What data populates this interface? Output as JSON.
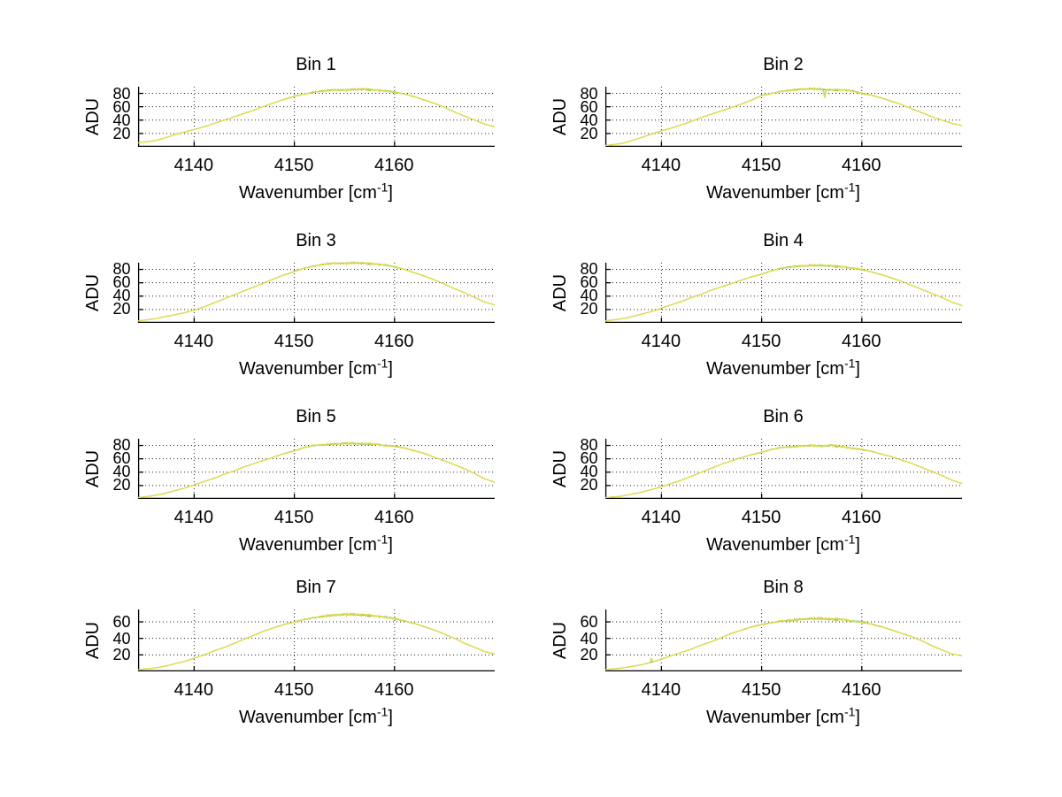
{
  "figure": {
    "background": "#ffffff",
    "text_color": "#000000"
  },
  "labels": {
    "ylabel": "ADU",
    "xlabel_pre": "Wavenumber [cm",
    "xlabel_sup": "-1",
    "xlabel_post": "]"
  },
  "colors": {
    "axis": "#000000",
    "grid": "#222222",
    "trace_black": "#222222",
    "trace_cyan": "#6ec6bb",
    "trace_green": "#8ccf5a",
    "trace_yellow": "#e5d942"
  },
  "chart_data": [
    {
      "type": "line",
      "title": "Bin 1",
      "xlabel": "Wavenumber [cm^-1]",
      "ylabel": "ADU",
      "xlim": [
        4134.4,
        4170
      ],
      "ylim": [
        0,
        90
      ],
      "x_ticks": [
        4140,
        4150,
        4160
      ],
      "y_ticks": [
        20,
        40,
        60,
        80
      ],
      "grid": true,
      "points": [
        [
          4134.4,
          6
        ],
        [
          4136,
          9
        ],
        [
          4137,
          13
        ],
        [
          4138,
          18
        ],
        [
          4139,
          22
        ],
        [
          4140,
          26
        ],
        [
          4141,
          30
        ],
        [
          4142,
          35
        ],
        [
          4143,
          40
        ],
        [
          4144,
          45
        ],
        [
          4145,
          50
        ],
        [
          4146,
          55
        ],
        [
          4147,
          61
        ],
        [
          4148,
          66
        ],
        [
          4149,
          71
        ],
        [
          4150,
          76
        ],
        [
          4151,
          79
        ],
        [
          4152,
          82
        ],
        [
          4153,
          84
        ],
        [
          4154,
          85
        ],
        [
          4155,
          85
        ],
        [
          4156,
          86
        ],
        [
          4157,
          86
        ],
        [
          4158,
          85
        ],
        [
          4159,
          84
        ],
        [
          4160,
          82
        ],
        [
          4161,
          79
        ],
        [
          4162,
          75
        ],
        [
          4163,
          70
        ],
        [
          4164,
          65
        ],
        [
          4165,
          59
        ],
        [
          4166,
          52
        ],
        [
          4167,
          46
        ],
        [
          4168,
          40
        ],
        [
          4169,
          34
        ],
        [
          4170,
          30
        ]
      ],
      "spikes": []
    },
    {
      "type": "line",
      "title": "Bin 2",
      "xlabel": "Wavenumber [cm^-1]",
      "ylabel": "ADU",
      "xlim": [
        4134.4,
        4170
      ],
      "ylim": [
        0,
        90
      ],
      "x_ticks": [
        4140,
        4150,
        4160
      ],
      "y_ticks": [
        20,
        40,
        60,
        80
      ],
      "grid": true,
      "points": [
        [
          4134.4,
          2
        ],
        [
          4136,
          5
        ],
        [
          4137,
          9
        ],
        [
          4138,
          14
        ],
        [
          4139,
          19
        ],
        [
          4140,
          24
        ],
        [
          4141,
          28
        ],
        [
          4142,
          33
        ],
        [
          4143,
          38
        ],
        [
          4144,
          44
        ],
        [
          4145,
          49
        ],
        [
          4146,
          54
        ],
        [
          4147,
          59
        ],
        [
          4148,
          64
        ],
        [
          4149,
          70
        ],
        [
          4150,
          77
        ],
        [
          4151,
          80
        ],
        [
          4152,
          83
        ],
        [
          4153,
          85
        ],
        [
          4154,
          86
        ],
        [
          4155,
          87
        ],
        [
          4156,
          86
        ],
        [
          4157,
          85
        ],
        [
          4158,
          85
        ],
        [
          4159,
          84
        ],
        [
          4160,
          80
        ],
        [
          4161,
          77
        ],
        [
          4162,
          73
        ],
        [
          4163,
          68
        ],
        [
          4164,
          63
        ],
        [
          4165,
          57
        ],
        [
          4166,
          51
        ],
        [
          4167,
          45
        ],
        [
          4168,
          40
        ],
        [
          4169,
          35
        ],
        [
          4170,
          32
        ]
      ],
      "spikes": [
        {
          "x": 4156.3,
          "dy": -13
        }
      ]
    },
    {
      "type": "line",
      "title": "Bin 3",
      "xlabel": "Wavenumber [cm^-1]",
      "ylabel": "ADU",
      "xlim": [
        4134.4,
        4170
      ],
      "ylim": [
        0,
        90
      ],
      "x_ticks": [
        4140,
        4150,
        4160
      ],
      "y_ticks": [
        20,
        40,
        60,
        80
      ],
      "grid": true,
      "points": [
        [
          4134.4,
          3
        ],
        [
          4136,
          6
        ],
        [
          4137,
          9
        ],
        [
          4138,
          12
        ],
        [
          4139,
          15
        ],
        [
          4140,
          19
        ],
        [
          4141,
          24
        ],
        [
          4142,
          30
        ],
        [
          4143,
          36
        ],
        [
          4144,
          42
        ],
        [
          4145,
          48
        ],
        [
          4146,
          54
        ],
        [
          4147,
          60
        ],
        [
          4148,
          66
        ],
        [
          4149,
          72
        ],
        [
          4150,
          77
        ],
        [
          4151,
          82
        ],
        [
          4152,
          85
        ],
        [
          4153,
          88
        ],
        [
          4154,
          89
        ],
        [
          4155,
          89
        ],
        [
          4156,
          90
        ],
        [
          4157,
          89
        ],
        [
          4158,
          88
        ],
        [
          4159,
          87
        ],
        [
          4160,
          84
        ],
        [
          4161,
          80
        ],
        [
          4162,
          75
        ],
        [
          4163,
          70
        ],
        [
          4164,
          64
        ],
        [
          4165,
          58
        ],
        [
          4166,
          51
        ],
        [
          4167,
          45
        ],
        [
          4168,
          38
        ],
        [
          4169,
          31
        ],
        [
          4170,
          27
        ]
      ],
      "spikes": []
    },
    {
      "type": "line",
      "title": "Bin 4",
      "xlabel": "Wavenumber [cm^-1]",
      "ylabel": "ADU",
      "xlim": [
        4134.4,
        4170
      ],
      "ylim": [
        0,
        90
      ],
      "x_ticks": [
        4140,
        4150,
        4160
      ],
      "y_ticks": [
        20,
        40,
        60,
        80
      ],
      "grid": true,
      "points": [
        [
          4134.4,
          3
        ],
        [
          4136,
          6
        ],
        [
          4137,
          9
        ],
        [
          4138,
          13
        ],
        [
          4139,
          17
        ],
        [
          4140,
          22
        ],
        [
          4141,
          27
        ],
        [
          4142,
          32
        ],
        [
          4143,
          38
        ],
        [
          4144,
          43
        ],
        [
          4145,
          49
        ],
        [
          4146,
          54
        ],
        [
          4147,
          59
        ],
        [
          4148,
          64
        ],
        [
          4149,
          69
        ],
        [
          4150,
          73
        ],
        [
          4151,
          78
        ],
        [
          4152,
          82
        ],
        [
          4153,
          84
        ],
        [
          4154,
          85
        ],
        [
          4155,
          86
        ],
        [
          4156,
          86
        ],
        [
          4157,
          85
        ],
        [
          4158,
          84
        ],
        [
          4159,
          82
        ],
        [
          4160,
          80
        ],
        [
          4161,
          76
        ],
        [
          4162,
          72
        ],
        [
          4163,
          67
        ],
        [
          4164,
          62
        ],
        [
          4165,
          56
        ],
        [
          4166,
          50
        ],
        [
          4167,
          44
        ],
        [
          4168,
          38
        ],
        [
          4169,
          31
        ],
        [
          4170,
          26
        ]
      ],
      "spikes": []
    },
    {
      "type": "line",
      "title": "Bin 5",
      "xlabel": "Wavenumber [cm^-1]",
      "ylabel": "ADU",
      "xlim": [
        4134.4,
        4170
      ],
      "ylim": [
        0,
        90
      ],
      "x_ticks": [
        4140,
        4150,
        4160
      ],
      "y_ticks": [
        20,
        40,
        60,
        80
      ],
      "grid": true,
      "points": [
        [
          4134.4,
          2
        ],
        [
          4136,
          5
        ],
        [
          4137,
          8
        ],
        [
          4138,
          12
        ],
        [
          4139,
          16
        ],
        [
          4140,
          21
        ],
        [
          4141,
          26
        ],
        [
          4142,
          31
        ],
        [
          4143,
          37
        ],
        [
          4144,
          42
        ],
        [
          4145,
          48
        ],
        [
          4146,
          53
        ],
        [
          4147,
          58
        ],
        [
          4148,
          63
        ],
        [
          4149,
          68
        ],
        [
          4150,
          72
        ],
        [
          4151,
          77
        ],
        [
          4152,
          80
        ],
        [
          4153,
          81
        ],
        [
          4154,
          82
        ],
        [
          4155,
          83
        ],
        [
          4156,
          83
        ],
        [
          4157,
          82
        ],
        [
          4158,
          82
        ],
        [
          4159,
          80
        ],
        [
          4160,
          79
        ],
        [
          4161,
          76
        ],
        [
          4162,
          72
        ],
        [
          4163,
          68
        ],
        [
          4164,
          62
        ],
        [
          4165,
          57
        ],
        [
          4166,
          51
        ],
        [
          4167,
          45
        ],
        [
          4168,
          38
        ],
        [
          4169,
          30
        ],
        [
          4170,
          25
        ]
      ],
      "spikes": []
    },
    {
      "type": "line",
      "title": "Bin 6",
      "xlabel": "Wavenumber [cm^-1]",
      "ylabel": "ADU",
      "xlim": [
        4134.4,
        4170
      ],
      "ylim": [
        0,
        90
      ],
      "x_ticks": [
        4140,
        4150,
        4160
      ],
      "y_ticks": [
        20,
        40,
        60,
        80
      ],
      "grid": true,
      "points": [
        [
          4134.4,
          2
        ],
        [
          4136,
          4
        ],
        [
          4137,
          7
        ],
        [
          4138,
          10
        ],
        [
          4139,
          14
        ],
        [
          4140,
          18
        ],
        [
          4141,
          23
        ],
        [
          4142,
          28
        ],
        [
          4143,
          34
        ],
        [
          4144,
          40
        ],
        [
          4145,
          46
        ],
        [
          4146,
          52
        ],
        [
          4147,
          57
        ],
        [
          4148,
          62
        ],
        [
          4149,
          66
        ],
        [
          4150,
          70
        ],
        [
          4151,
          74
        ],
        [
          4152,
          77
        ],
        [
          4153,
          78
        ],
        [
          4154,
          79
        ],
        [
          4155,
          80
        ],
        [
          4156,
          79
        ],
        [
          4157,
          80
        ],
        [
          4158,
          78
        ],
        [
          4159,
          76
        ],
        [
          4160,
          74
        ],
        [
          4161,
          71
        ],
        [
          4162,
          67
        ],
        [
          4163,
          63
        ],
        [
          4164,
          58
        ],
        [
          4165,
          53
        ],
        [
          4166,
          47
        ],
        [
          4167,
          41
        ],
        [
          4168,
          35
        ],
        [
          4169,
          28
        ],
        [
          4170,
          23
        ]
      ],
      "spikes": []
    },
    {
      "type": "line",
      "title": "Bin 7",
      "xlabel": "Wavenumber [cm^-1]",
      "ylabel": "ADU",
      "xlim": [
        4134.4,
        4170
      ],
      "ylim": [
        0,
        75
      ],
      "x_ticks": [
        4140,
        4150,
        4160
      ],
      "y_ticks": [
        20,
        40,
        60
      ],
      "grid": true,
      "points": [
        [
          4134.4,
          2
        ],
        [
          4136,
          4
        ],
        [
          4137,
          6
        ],
        [
          4138,
          9
        ],
        [
          4139,
          12
        ],
        [
          4140,
          16
        ],
        [
          4141,
          20
        ],
        [
          4142,
          25
        ],
        [
          4143,
          29
        ],
        [
          4144,
          34
        ],
        [
          4145,
          39
        ],
        [
          4146,
          44
        ],
        [
          4147,
          49
        ],
        [
          4148,
          53
        ],
        [
          4149,
          57
        ],
        [
          4150,
          60
        ],
        [
          4151,
          63
        ],
        [
          4152,
          65
        ],
        [
          4153,
          67
        ],
        [
          4154,
          68
        ],
        [
          4155,
          69
        ],
        [
          4156,
          69
        ],
        [
          4157,
          68
        ],
        [
          4158,
          67
        ],
        [
          4159,
          66
        ],
        [
          4160,
          64
        ],
        [
          4161,
          61
        ],
        [
          4162,
          58
        ],
        [
          4163,
          54
        ],
        [
          4164,
          50
        ],
        [
          4165,
          45
        ],
        [
          4166,
          40
        ],
        [
          4167,
          34
        ],
        [
          4168,
          29
        ],
        [
          4169,
          24
        ],
        [
          4170,
          21
        ]
      ],
      "spikes": []
    },
    {
      "type": "line",
      "title": "Bin 8",
      "xlabel": "Wavenumber [cm^-1]",
      "ylabel": "ADU",
      "xlim": [
        4134.4,
        4170
      ],
      "ylim": [
        0,
        75
      ],
      "x_ticks": [
        4140,
        4150,
        4160
      ],
      "y_ticks": [
        20,
        40,
        60
      ],
      "grid": true,
      "points": [
        [
          4134.4,
          2
        ],
        [
          4136,
          4
        ],
        [
          4137,
          6
        ],
        [
          4138,
          8
        ],
        [
          4139,
          11
        ],
        [
          4140,
          15
        ],
        [
          4141,
          19
        ],
        [
          4142,
          23
        ],
        [
          4143,
          27
        ],
        [
          4144,
          32
        ],
        [
          4145,
          36
        ],
        [
          4146,
          41
        ],
        [
          4147,
          46
        ],
        [
          4148,
          50
        ],
        [
          4149,
          54
        ],
        [
          4150,
          57
        ],
        [
          4151,
          59
        ],
        [
          4152,
          61
        ],
        [
          4153,
          62
        ],
        [
          4154,
          63
        ],
        [
          4155,
          64
        ],
        [
          4156,
          64
        ],
        [
          4157,
          63
        ],
        [
          4158,
          63
        ],
        [
          4159,
          61
        ],
        [
          4160,
          60
        ],
        [
          4161,
          57
        ],
        [
          4162,
          54
        ],
        [
          4163,
          50
        ],
        [
          4164,
          46
        ],
        [
          4165,
          42
        ],
        [
          4166,
          37
        ],
        [
          4167,
          31
        ],
        [
          4168,
          26
        ],
        [
          4169,
          21
        ],
        [
          4170,
          19
        ]
      ],
      "spikes": [
        {
          "x": 4139.0,
          "dy": 5
        }
      ]
    }
  ]
}
